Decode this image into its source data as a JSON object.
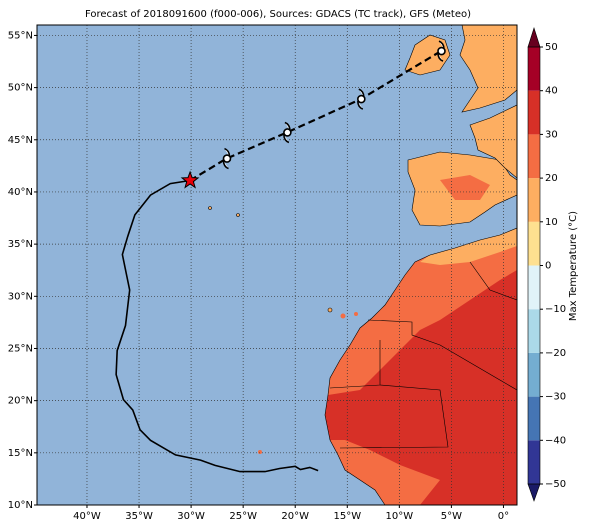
{
  "title": "Forecast of 2018091600 (f000-006), Sources: GDACS (TC track), GFS (Meteo)",
  "map": {
    "type": "map",
    "lonlim": [
      -44.8,
      1.3
    ],
    "latlim": [
      10,
      56
    ],
    "grid": true,
    "lonticks": [
      {
        "value": -40,
        "label": "40°W"
      },
      {
        "value": -35,
        "label": "35°W"
      },
      {
        "value": -30,
        "label": "30°W"
      },
      {
        "value": -25,
        "label": "25°W"
      },
      {
        "value": -20,
        "label": "20°W"
      },
      {
        "value": -15,
        "label": "15°W"
      },
      {
        "value": -10,
        "label": "10°W"
      },
      {
        "value": -5,
        "label": "5°W"
      },
      {
        "value": 0,
        "label": "0°"
      }
    ],
    "latticks": [
      {
        "value": 10,
        "label": "10°N"
      },
      {
        "value": 15,
        "label": "15°N"
      },
      {
        "value": 20,
        "label": "20°N"
      },
      {
        "value": 25,
        "label": "25°N"
      },
      {
        "value": 30,
        "label": "30°N"
      },
      {
        "value": 35,
        "label": "35°N"
      },
      {
        "value": 40,
        "label": "40°N"
      },
      {
        "value": 45,
        "label": "45°N"
      },
      {
        "value": 50,
        "label": "50°N"
      },
      {
        "value": 55,
        "label": "55°N"
      }
    ],
    "past_track": {
      "color": "#000000",
      "lon": [
        -30.1,
        -32.0,
        -33.9,
        -35.4,
        -36.1,
        -36.6,
        -35.9,
        -36.3,
        -37.1,
        -37.2,
        -36.5,
        -35.6,
        -34.9,
        -33.9,
        -31.5,
        -29.1,
        -27.7,
        -25.3,
        -22.9,
        -21.5,
        -20.0,
        -19.5,
        -18.6,
        -17.8
      ],
      "lat": [
        41.1,
        40.8,
        39.7,
        37.8,
        35.7,
        34.0,
        30.6,
        27.2,
        24.8,
        22.5,
        20.1,
        19.1,
        17.2,
        16.2,
        14.8,
        14.3,
        13.8,
        13.2,
        13.2,
        13.5,
        13.7,
        13.4,
        13.6,
        13.3
      ]
    },
    "forecast_track": {
      "color": "#000000",
      "marker_color": "#e8000b",
      "lon": [
        -30.1,
        -26.6,
        -20.8,
        -13.7,
        -6.0
      ],
      "lat": [
        41.1,
        43.2,
        45.7,
        48.9,
        53.5
      ]
    },
    "colorbar": {
      "label": "Max Temperature (°C)",
      "ticks": [
        {
          "value": -50,
          "label": "−50"
        },
        {
          "value": -40,
          "label": "−40"
        },
        {
          "value": -30,
          "label": "−30"
        },
        {
          "value": -20,
          "label": "−20"
        },
        {
          "value": -10,
          "label": "−10"
        },
        0,
        10,
        20,
        30,
        40,
        50
      ],
      "colors": [
        "#313695",
        "#4575b4",
        "#74add1",
        "#abd9e9",
        "#e0f3f8",
        "#fee090",
        "#fdae61",
        "#f46d43",
        "#d73027",
        "#a50026"
      ],
      "under_color": "#1a1a66",
      "over_color": "#67001f"
    }
  }
}
